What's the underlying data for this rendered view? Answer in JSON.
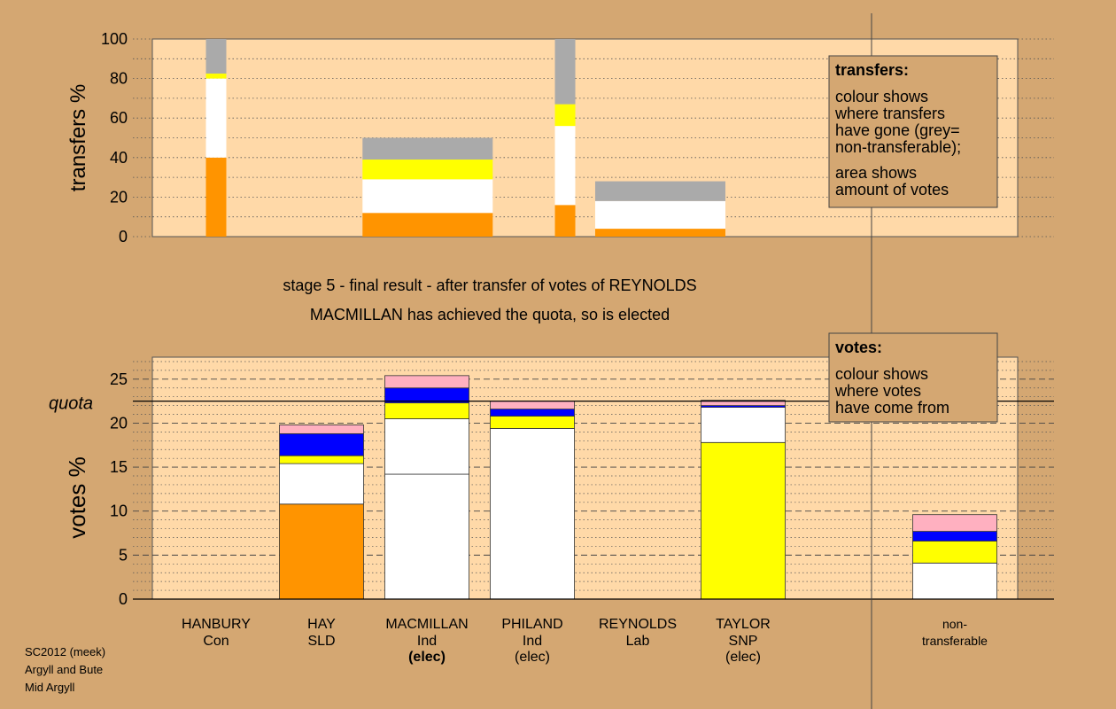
{
  "colors": {
    "background": "#d4a772",
    "plot_bg": "#ffd9a8",
    "orange": "#ff9400",
    "white": "#ffffff",
    "yellow": "#ffff00",
    "blue": "#0000ff",
    "pink": "#ffb0c0",
    "grey": "#aaaaaa",
    "legend_bg": "#d4a772"
  },
  "headline": {
    "line1": "stage 5 - final result - after transfer of votes of REYNOLDS",
    "line2": "MACMILLAN has achieved the quota, so is elected"
  },
  "footer": [
    "SC2012 (meek)",
    "Argyll and Bute",
    "Mid Argyll"
  ],
  "chart_data": [
    {
      "type": "bar",
      "name_ref": "transfers",
      "ylabel": "transfers %",
      "ylim": [
        0,
        100
      ],
      "yticks": [
        0,
        20,
        40,
        60,
        80,
        100
      ],
      "legend": {
        "title": "transfers:",
        "lines": [
          "colour shows",
          "where transfers",
          "have gone (grey=",
          "non-transferable);",
          "area shows",
          "amount of votes"
        ]
      },
      "bars": [
        {
          "x_col": 0.7,
          "width": "narrow",
          "segments": [
            {
              "color": "orange",
              "value": 40
            },
            {
              "color": "white",
              "value": 40
            },
            {
              "color": "yellow",
              "value": 2.5
            },
            {
              "color": "grey",
              "value": 17.5
            }
          ]
        },
        {
          "x_col": 2.7,
          "width": "wide",
          "segments": [
            {
              "color": "orange",
              "value": 12
            },
            {
              "color": "white",
              "value": 17
            },
            {
              "color": "yellow",
              "value": 10
            },
            {
              "color": "grey",
              "value": 11
            }
          ]
        },
        {
          "x_col": 4.0,
          "width": "narrow",
          "segments": [
            {
              "color": "orange",
              "value": 16
            },
            {
              "color": "white",
              "value": 40
            },
            {
              "color": "yellow",
              "value": 11
            },
            {
              "color": "grey",
              "value": 33
            }
          ]
        },
        {
          "x_col": 4.9,
          "width": "wide",
          "segments": [
            {
              "color": "orange",
              "value": 4
            },
            {
              "color": "white",
              "value": 14
            },
            {
              "color": "grey",
              "value": 10
            }
          ]
        }
      ]
    },
    {
      "type": "bar",
      "name_ref": "votes",
      "ylabel": "votes %",
      "ylim": [
        0,
        27.5
      ],
      "yticks": [
        0,
        5,
        10,
        15,
        20,
        25
      ],
      "quota": 22.5,
      "quota_label": "quota",
      "legend": {
        "title": "votes:",
        "lines": [
          "colour shows",
          "where votes",
          "have come from"
        ]
      },
      "categories": [
        {
          "name": "HANBURY",
          "party": "Con",
          "status": ""
        },
        {
          "name": "HAY",
          "party": "SLD",
          "status": ""
        },
        {
          "name": "MACMILLAN",
          "party": "Ind",
          "status": "(elec)",
          "bold_status": true
        },
        {
          "name": "PHILAND",
          "party": "Ind",
          "status": "(elec)"
        },
        {
          "name": "REYNOLDS",
          "party": "Lab",
          "status": ""
        },
        {
          "name": "TAYLOR",
          "party": "SNP",
          "status": "(elec)"
        },
        {
          "name": "non-",
          "party": "transferable",
          "status": ""
        }
      ],
      "bars": [
        {
          "category": 0,
          "segments": []
        },
        {
          "category": 1,
          "segments": [
            {
              "color": "orange",
              "value": 10.8
            },
            {
              "color": "white",
              "value": 4.6
            },
            {
              "color": "yellow",
              "value": 0.9
            },
            {
              "color": "blue",
              "value": 2.5
            },
            {
              "color": "pink",
              "value": 1.0
            }
          ]
        },
        {
          "category": 2,
          "segments": [
            {
              "color": "white",
              "value": 14.2
            },
            {
              "color": "white",
              "value": 6.3
            },
            {
              "color": "yellow",
              "value": 1.8
            },
            {
              "color": "blue",
              "value": 1.7
            },
            {
              "color": "pink",
              "value": 1.4
            }
          ]
        },
        {
          "category": 3,
          "segments": [
            {
              "color": "white",
              "value": 19.4
            },
            {
              "color": "yellow",
              "value": 1.4
            },
            {
              "color": "blue",
              "value": 0.8
            },
            {
              "color": "pink",
              "value": 0.9
            }
          ]
        },
        {
          "category": 4,
          "segments": []
        },
        {
          "category": 5,
          "segments": [
            {
              "color": "yellow",
              "value": 17.8
            },
            {
              "color": "white",
              "value": 4.0
            },
            {
              "color": "blue",
              "value": 0.2
            },
            {
              "color": "pink",
              "value": 0.6
            }
          ]
        },
        {
          "category": 6,
          "segments": [
            {
              "color": "white",
              "value": 4.1
            },
            {
              "color": "yellow",
              "value": 2.5
            },
            {
              "color": "blue",
              "value": 1.1
            },
            {
              "color": "pink",
              "value": 1.9
            }
          ]
        }
      ]
    }
  ]
}
